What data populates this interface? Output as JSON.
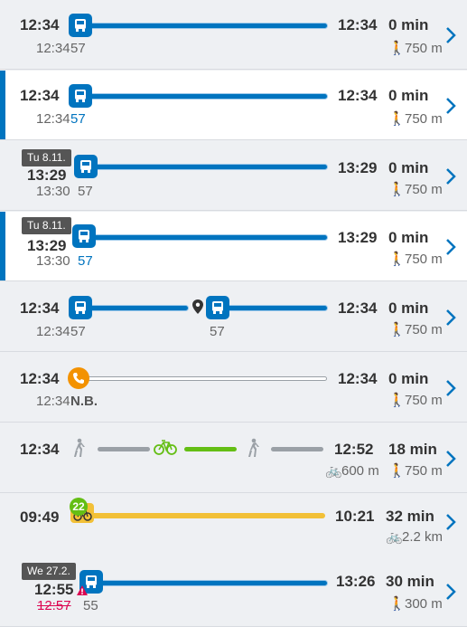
{
  "itineraries": [
    {
      "start": "12:34",
      "start_sub": "12:34",
      "route": "57",
      "end": "12:34",
      "duration": "0 min",
      "walk": "750 m"
    },
    {
      "start": "12:34",
      "start_sub": "12:34",
      "route": "57",
      "end": "12:34",
      "duration": "0 min",
      "walk": "750 m"
    },
    {
      "date": "Tu 8.11.",
      "start": "13:29",
      "start_sub": "13:30",
      "route": "57",
      "end": "13:29",
      "duration": "0 min",
      "walk": "750 m"
    },
    {
      "date": "Tu 8.11.",
      "start": "13:29",
      "start_sub": "13:30",
      "route": "57",
      "end": "13:29",
      "duration": "0 min",
      "walk": "750 m"
    },
    {
      "start": "12:34",
      "start_sub": "12:34",
      "route": "57",
      "route2": "57",
      "end": "12:34",
      "duration": "0 min",
      "walk": "750 m"
    },
    {
      "start": "12:34",
      "start_sub": "12:34",
      "route": "N.B.",
      "end": "12:34",
      "duration": "0 min",
      "walk": "750 m"
    },
    {
      "start": "12:34",
      "end": "12:52",
      "duration": "18 min",
      "bike": "600 m",
      "walk": "750 m"
    },
    {
      "start": "09:49",
      "end": "10:21",
      "duration": "32 min",
      "bike": "2.2 km",
      "citybike_count": "22"
    },
    {
      "date": "We 27.2.",
      "start": "12:55",
      "start_sub": "12:57",
      "route": "55",
      "end": "13:26",
      "duration": "30 min",
      "walk": "300 m"
    }
  ],
  "colors": {
    "bus": "#0074bf",
    "walk": "#9aa0a6",
    "bike": "#64be14",
    "citybike": "#f2c037",
    "call": "#f39200",
    "alert": "#dc0451"
  }
}
